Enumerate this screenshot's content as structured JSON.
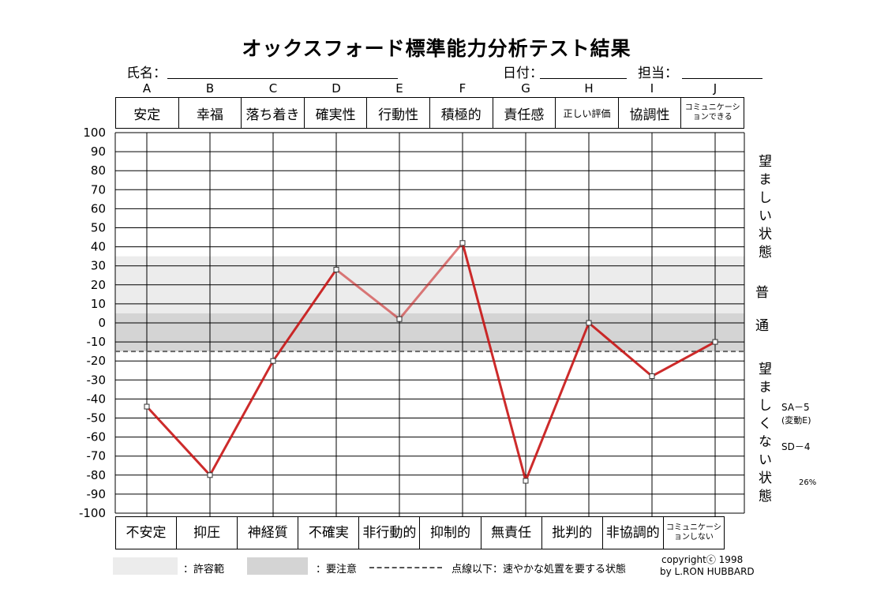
{
  "header": {
    "title": "オックスフォード標準能力分析テスト結果",
    "name_label": "氏名：",
    "date_label": "日付：",
    "staff_label": "担当："
  },
  "columns": {
    "letters": [
      "A",
      "B",
      "C",
      "D",
      "E",
      "F",
      "G",
      "H",
      "I",
      "J"
    ],
    "top_labels": [
      "安定",
      "幸福",
      "落ち着き",
      "確実性",
      "行動性",
      "積極的",
      "責任感",
      "正しい評価",
      "協調性",
      "コミュニケーションできる"
    ],
    "bottom_labels": [
      "不安定",
      "抑圧",
      "神経質",
      "不確実",
      "非行動的",
      "抑制的",
      "無責任",
      "批判的",
      "非協調的",
      "コミュニケーションしない"
    ]
  },
  "side": {
    "desirable": "望ましい状態",
    "normal_1": "普",
    "normal_2": "通",
    "undesirable": "望ましくない状態"
  },
  "notes": {
    "sa": "SA－5",
    "sa_sub": "(変動E)",
    "sd": "SD－4",
    "pct": "26%"
  },
  "legend": {
    "acceptable": "：許容範",
    "caution": "：要注意",
    "dotted": "点線以下：速やかな処置を要する状態"
  },
  "footer": {
    "copyright": "copyrightⓒ 1998",
    "author": "by L.RON HUBBARD"
  },
  "colors": {
    "line": "#c81414",
    "acceptable_band": "#ececec",
    "caution_band": "#d4d4d4",
    "grid": "#000000"
  },
  "chart_data": {
    "type": "line",
    "categories": [
      "A",
      "B",
      "C",
      "D",
      "E",
      "F",
      "G",
      "H",
      "I",
      "J"
    ],
    "values": [
      -44,
      -80,
      -20,
      28,
      2,
      42,
      -83,
      0,
      -28,
      -10
    ],
    "ylim": [
      -100,
      100
    ],
    "yticks": [
      100,
      90,
      80,
      70,
      60,
      50,
      40,
      30,
      20,
      10,
      0,
      -10,
      -20,
      -30,
      -40,
      -50,
      -60,
      -70,
      -80,
      -90,
      -100
    ],
    "bands": [
      {
        "name": "acceptable",
        "from": 5,
        "to": 35
      },
      {
        "name": "caution",
        "from": -15,
        "to": 5
      }
    ],
    "threshold": -15,
    "grid": true
  }
}
